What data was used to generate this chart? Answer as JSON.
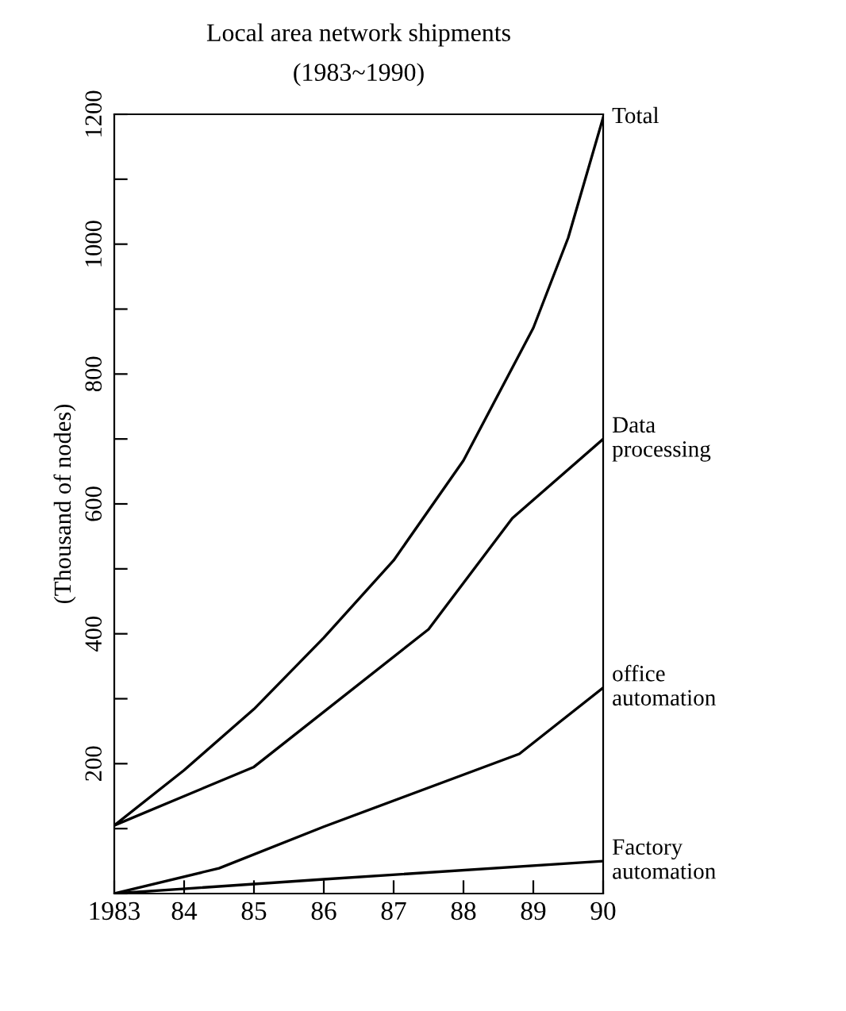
{
  "chart_data": {
    "type": "line",
    "title": "Local area network shipments",
    "subtitle": "(1983~1990)",
    "ylabel": "(Thousand of nodes)",
    "xlim": [
      1983,
      1990
    ],
    "xticks": [
      {
        "value": 1983,
        "label": "1983"
      },
      {
        "value": 1984,
        "label": "84"
      },
      {
        "value": 1985,
        "label": "85"
      },
      {
        "value": 1986,
        "label": "86"
      },
      {
        "value": 1987,
        "label": "87"
      },
      {
        "value": 1988,
        "label": "88"
      },
      {
        "value": 1989,
        "label": "89"
      },
      {
        "value": 1990,
        "label": "90"
      }
    ],
    "ylim": [
      0,
      1200
    ],
    "yticks": [
      {
        "value": 0,
        "label": null
      },
      {
        "value": 100,
        "label": null
      },
      200,
      {
        "value": 300,
        "label": null
      },
      400,
      {
        "value": 500,
        "label": null
      },
      600,
      {
        "value": 700,
        "label": null
      },
      800,
      {
        "value": 900,
        "label": null
      },
      1000,
      {
        "value": 1100,
        "label": null
      },
      1200
    ],
    "grid": false,
    "legend": false,
    "marker": "none",
    "line_style": "solid",
    "series": [
      {
        "name": "Total",
        "color": "#000000",
        "x": [
          1983,
          1984,
          1985,
          1986,
          1987,
          1988,
          1989,
          1989.5,
          1990
        ],
        "values": [
          105,
          190,
          284,
          394,
          513,
          667,
          871,
          1010,
          1195
        ]
      },
      {
        "name": "Data processing",
        "color": "#000000",
        "x": [
          1983,
          1985,
          1987.5,
          1988.7,
          1990
        ],
        "values": [
          105,
          195,
          407,
          578,
          700
        ]
      },
      {
        "name": "office automation",
        "color": "#000000",
        "x": [
          1983,
          1984.5,
          1986,
          1988.8,
          1990
        ],
        "values": [
          0,
          39,
          103,
          215,
          317
        ]
      },
      {
        "name": "Factory automation",
        "color": "#000000",
        "x": [
          1983,
          1986,
          1990
        ],
        "values": [
          0,
          22,
          50
        ]
      }
    ]
  }
}
